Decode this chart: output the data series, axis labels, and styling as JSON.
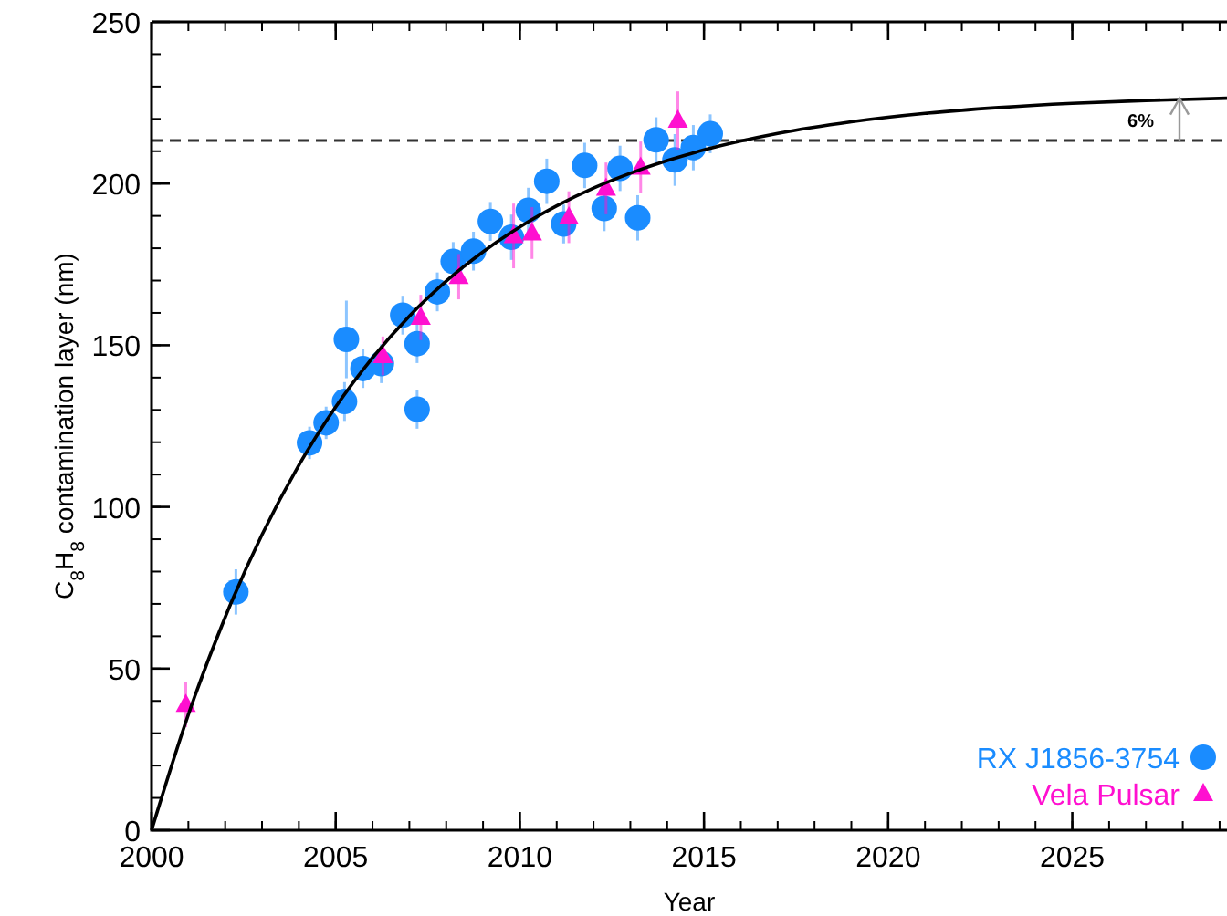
{
  "chart_data": {
    "type": "scatter",
    "xlabel": "Year",
    "ylabel": "C$_{8}$H$_{8}$ contamination layer (nm)",
    "xlim": [
      2000,
      2029.2
    ],
    "ylim": [
      0,
      250
    ],
    "xticks": [
      2000,
      2005,
      2010,
      2015,
      2020,
      2025
    ],
    "yticks": [
      0,
      50,
      100,
      150,
      200,
      250
    ],
    "grid": false,
    "legend": "bottom right",
    "series": [
      {
        "name": "RX J1856-3754",
        "color": "#1a8cff",
        "marker": "circle",
        "x": [
          2002.29,
          2004.29,
          2004.74,
          2005.24,
          2005.29,
          2005.74,
          2006.24,
          2006.82,
          2007.21,
          2007.21,
          2007.76,
          2008.19,
          2008.74,
          2009.2,
          2009.77,
          2010.23,
          2010.73,
          2011.19,
          2011.76,
          2012.29,
          2012.72,
          2013.2,
          2013.7,
          2014.21,
          2014.71,
          2015.17
        ],
        "values": [
          73.7,
          119.8,
          126,
          132.6,
          151.8,
          142.8,
          144.3,
          159.3,
          150.5,
          130.2,
          166.5,
          175.9,
          179.1,
          188.3,
          183.4,
          191.7,
          200.7,
          187.5,
          205.6,
          192.3,
          204.7,
          189.4,
          213.5,
          207.3,
          211.1,
          215.4
        ],
        "errors": [
          7,
          5,
          5,
          6,
          12,
          6,
          6,
          6,
          6,
          6,
          6,
          6,
          6,
          6,
          7,
          7,
          7,
          6,
          7,
          7,
          7,
          7,
          7,
          8,
          7,
          6
        ]
      },
      {
        "name": "Vela Pulsar",
        "color": "#ff10d0",
        "marker": "triangle",
        "x": [
          2000.93,
          2006.28,
          2007.31,
          2008.34,
          2009.83,
          2010.33,
          2011.33,
          2012.34,
          2013.28,
          2014.29
        ],
        "values": [
          38.9,
          146.7,
          158.6,
          171.2,
          183.8,
          184.7,
          189.6,
          198.5,
          205,
          219.5
        ],
        "errors": [
          7,
          6,
          7,
          7,
          10,
          8,
          8,
          8,
          8,
          9
        ]
      },
      {
        "type": "line",
        "color": "#000000",
        "marker": "none",
        "line_style": "solid",
        "x": [
          2000,
          2001,
          2002,
          2003,
          2004,
          2005,
          2006,
          2007,
          2008,
          2009,
          2010,
          2011,
          2012,
          2013,
          2014,
          2015,
          2017,
          2019,
          2021,
          2023,
          2025,
          2027,
          2029.2
        ],
        "values": [
          0,
          35.8,
          65.9,
          91.4,
          112.9,
          130.9,
          146.1,
          159,
          169.8,
          178.9,
          186.6,
          193.1,
          198.6,
          203.2,
          207.1,
          210.4,
          215.5,
          219.1,
          221.7,
          223.5,
          224.8,
          225.7,
          226.4
        ]
      }
    ],
    "ref_lines": [
      {
        "axis": "y",
        "value": 213.3,
        "color": "#333333",
        "line_style": "dashed"
      }
    ],
    "annotations": [
      "6%"
    ]
  }
}
